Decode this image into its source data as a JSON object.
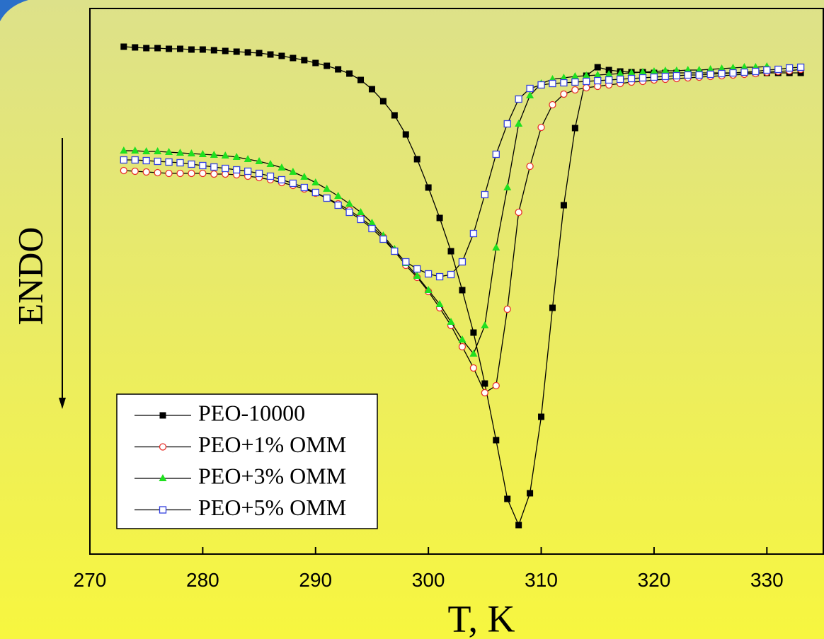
{
  "chart_data": {
    "type": "line",
    "xlabel": "T, K",
    "ylabel": "ENDO",
    "xlim": [
      270,
      335
    ],
    "xticks": [
      270,
      280,
      290,
      300,
      310,
      320,
      330
    ],
    "ylim": [
      0,
      771
    ],
    "x": [
      273,
      274,
      275,
      276,
      277,
      278,
      279,
      280,
      281,
      282,
      283,
      284,
      285,
      286,
      287,
      288,
      289,
      290,
      291,
      292,
      293,
      294,
      295,
      296,
      297,
      298,
      299,
      300,
      301,
      302,
      303,
      304,
      305,
      306,
      307,
      308,
      309,
      310,
      311,
      312,
      313,
      314,
      315,
      316,
      317,
      318,
      319,
      320,
      321,
      322,
      323,
      324,
      325,
      326,
      327,
      328,
      329,
      330,
      331,
      332,
      333
    ],
    "series": [
      {
        "name": "PEO-10000",
        "color": "#000000",
        "marker": "filled-square",
        "values": [
          717,
          716,
          715,
          715,
          714,
          714,
          713,
          713,
          712,
          711,
          710,
          709,
          708,
          706,
          704,
          701,
          698,
          694,
          690,
          685,
          679,
          670,
          657,
          640,
          620,
          593,
          558,
          518,
          475,
          428,
          373,
          313,
          241,
          161,
          78,
          41,
          86,
          194,
          348,
          493,
          602,
          676,
          688,
          684,
          682,
          681,
          681,
          680,
          680,
          680,
          680,
          680,
          680,
          680,
          680,
          680,
          680,
          680,
          680,
          680,
          680
        ]
      },
      {
        "name": "PEO+1% OMM",
        "color": "#e8302a",
        "marker": "open-circle",
        "values": [
          542,
          541,
          540,
          539,
          538,
          538,
          538,
          538,
          537,
          537,
          536,
          534,
          532,
          529,
          525,
          521,
          516,
          510,
          503,
          495,
          486,
          475,
          463,
          448,
          428,
          408,
          391,
          371,
          348,
          323,
          293,
          263,
          228,
          238,
          346,
          483,
          548,
          603,
          635,
          650,
          656,
          659,
          661,
          663,
          665,
          667,
          668,
          670,
          671,
          672,
          673,
          674,
          675,
          676,
          677,
          678,
          679,
          681,
          682,
          683,
          685
        ]
      },
      {
        "name": "PEO+3% OMM",
        "color": "#1fe01f",
        "marker": "filled-triangle",
        "values": [
          570,
          570,
          569,
          569,
          568,
          567,
          566,
          565,
          564,
          563,
          561,
          558,
          555,
          551,
          546,
          540,
          533,
          525,
          516,
          506,
          495,
          483,
          468,
          450,
          431,
          411,
          393,
          373,
          353,
          328,
          303,
          283,
          323,
          433,
          518,
          608,
          648,
          665,
          671,
          673,
          675,
          676,
          677,
          678,
          679,
          680,
          681,
          682,
          683,
          683,
          684,
          684,
          685,
          686,
          687,
          688,
          688,
          689,
          null,
          null,
          null
        ]
      },
      {
        "name": "PEO+5% OMM",
        "color": "#3340e0",
        "marker": "open-square",
        "values": [
          557,
          557,
          556,
          555,
          554,
          553,
          551,
          549,
          547,
          545,
          543,
          541,
          538,
          534,
          529,
          524,
          518,
          511,
          503,
          493,
          483,
          473,
          460,
          445,
          428,
          413,
          403,
          396,
          392,
          395,
          413,
          453,
          508,
          565,
          608,
          643,
          658,
          663,
          665,
          666,
          667,
          668,
          669,
          670,
          671,
          672,
          673,
          674,
          675,
          676,
          677,
          677,
          678,
          679,
          680,
          681,
          682,
          684,
          685,
          687,
          688
        ]
      }
    ]
  }
}
